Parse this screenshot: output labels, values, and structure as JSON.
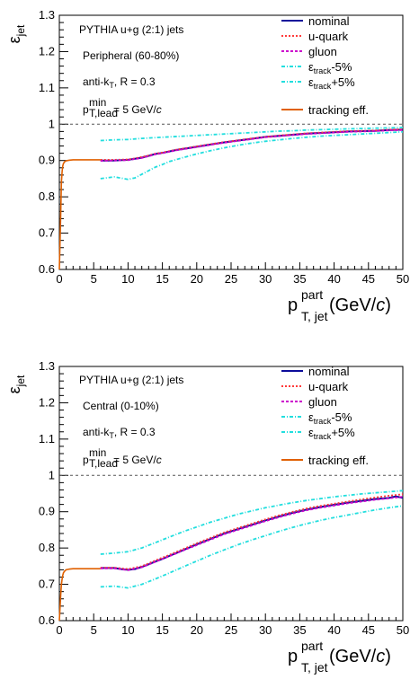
{
  "chart_data": [
    {
      "type": "line",
      "ylim": [
        0.6,
        1.3
      ],
      "xlim": [
        0,
        50
      ],
      "x_ticks": [
        "0",
        "5",
        "10",
        "15",
        "20",
        "25",
        "30",
        "35",
        "40",
        "45",
        "50"
      ],
      "y_ticks": [
        "0.6",
        "0.7",
        "0.8",
        "0.9",
        "1",
        "1.1",
        "1.2",
        "1.3"
      ],
      "ylabel": {
        "main": "ε",
        "sub": "jet"
      },
      "xlabel": {
        "main": "p",
        "sup": "part",
        "sub": "T, jet",
        "unit_pre": " (GeV/",
        "unit_c": "c",
        "unit_post": ")"
      },
      "annotations": {
        "generator": "PYTHIA u+g (2:1) jets",
        "centrality": "Peripheral (60-80%)",
        "algo_pre": "anti-k",
        "algo_sub": "T",
        "algo_post": ", R = 0.3",
        "pt_main": "p",
        "pt_sup": "min",
        "pt_sub": "T,lead",
        "pt_post": " = 5 GeV/",
        "pt_c": "c"
      },
      "legend": [
        {
          "key": "nominal",
          "label": "nominal"
        },
        {
          "key": "uquark",
          "label": "u-quark"
        },
        {
          "key": "gluon",
          "label": "gluon"
        },
        {
          "key": "minus",
          "label_main": "ε",
          "label_sub": "track",
          "label_post": "-5%"
        },
        {
          "key": "plus",
          "label_main": "ε",
          "label_sub": "track",
          "label_post": "+5%"
        },
        {
          "key": "tracking",
          "label": "tracking eff."
        }
      ],
      "reference_line": 1.0,
      "series": [
        {
          "key": "nominal",
          "x": [
            6,
            8,
            10,
            11,
            12,
            13,
            14,
            15,
            16,
            17,
            18,
            19,
            20,
            22,
            24,
            26,
            28,
            30,
            32,
            34,
            36,
            38,
            40,
            42,
            44,
            46,
            48,
            50
          ],
          "y": [
            0.9,
            0.9,
            0.902,
            0.905,
            0.908,
            0.913,
            0.918,
            0.921,
            0.925,
            0.929,
            0.932,
            0.935,
            0.938,
            0.944,
            0.95,
            0.955,
            0.96,
            0.965,
            0.968,
            0.971,
            0.974,
            0.976,
            0.978,
            0.98,
            0.981,
            0.982,
            0.984,
            0.985
          ]
        },
        {
          "key": "uquark",
          "x": [
            6,
            8,
            10,
            11,
            12,
            13,
            14,
            15,
            16,
            17,
            18,
            19,
            20,
            22,
            24,
            26,
            28,
            30,
            32,
            34,
            36,
            38,
            40,
            42,
            44,
            46,
            48,
            50
          ],
          "y": [
            0.902,
            0.902,
            0.903,
            0.906,
            0.91,
            0.914,
            0.919,
            0.922,
            0.926,
            0.93,
            0.933,
            0.936,
            0.939,
            0.945,
            0.951,
            0.956,
            0.961,
            0.965,
            0.969,
            0.972,
            0.975,
            0.977,
            0.979,
            0.981,
            0.982,
            0.983,
            0.985,
            0.986
          ]
        },
        {
          "key": "gluon",
          "x": [
            6,
            8,
            10,
            11,
            12,
            13,
            14,
            15,
            16,
            17,
            18,
            19,
            20,
            22,
            24,
            26,
            28,
            30,
            32,
            34,
            36,
            38,
            40,
            42,
            44,
            46,
            48,
            50
          ],
          "y": [
            0.899,
            0.9,
            0.901,
            0.904,
            0.907,
            0.912,
            0.917,
            0.92,
            0.924,
            0.928,
            0.931,
            0.934,
            0.937,
            0.943,
            0.949,
            0.954,
            0.959,
            0.964,
            0.967,
            0.97,
            0.973,
            0.975,
            0.977,
            0.979,
            0.98,
            0.981,
            0.983,
            0.984
          ]
        },
        {
          "key": "minus",
          "x": [
            6,
            8,
            10,
            11,
            12,
            13,
            14,
            15,
            16,
            18,
            20,
            22,
            24,
            26,
            28,
            30,
            32,
            34,
            36,
            38,
            40,
            42,
            44,
            46,
            48,
            50
          ],
          "y": [
            0.85,
            0.855,
            0.848,
            0.852,
            0.862,
            0.872,
            0.882,
            0.889,
            0.897,
            0.908,
            0.918,
            0.927,
            0.935,
            0.942,
            0.948,
            0.953,
            0.957,
            0.961,
            0.964,
            0.967,
            0.969,
            0.971,
            0.973,
            0.975,
            0.977,
            0.979
          ]
        },
        {
          "key": "plus",
          "x": [
            6,
            8,
            10,
            12,
            14,
            16,
            18,
            20,
            22,
            24,
            26,
            28,
            30,
            32,
            34,
            36,
            38,
            40,
            42,
            44,
            46,
            48,
            50
          ],
          "y": [
            0.955,
            0.957,
            0.958,
            0.961,
            0.963,
            0.965,
            0.967,
            0.969,
            0.971,
            0.973,
            0.975,
            0.977,
            0.979,
            0.981,
            0.982,
            0.984,
            0.985,
            0.986,
            0.987,
            0.988,
            0.989,
            0.99,
            0.991
          ]
        },
        {
          "key": "tracking",
          "x": [
            0,
            0.2,
            0.3,
            0.4,
            0.5,
            0.6,
            0.8,
            1.0,
            1.2,
            1.5,
            2,
            3,
            4,
            5,
            6
          ],
          "y": [
            0.6,
            0.75,
            0.84,
            0.87,
            0.885,
            0.892,
            0.897,
            0.899,
            0.9,
            0.901,
            0.902,
            0.902,
            0.902,
            0.902,
            0.902
          ]
        }
      ]
    },
    {
      "type": "line",
      "ylim": [
        0.6,
        1.3
      ],
      "xlim": [
        0,
        50
      ],
      "x_ticks": [
        "0",
        "5",
        "10",
        "15",
        "20",
        "25",
        "30",
        "35",
        "40",
        "45",
        "50"
      ],
      "y_ticks": [
        "0.6",
        "0.7",
        "0.8",
        "0.9",
        "1",
        "1.1",
        "1.2",
        "1.3"
      ],
      "ylabel": {
        "main": "ε",
        "sub": "jet"
      },
      "xlabel": {
        "main": "p",
        "sup": "part",
        "sub": "T, jet",
        "unit_pre": " (GeV/",
        "unit_c": "c",
        "unit_post": ")"
      },
      "annotations": {
        "generator": "PYTHIA u+g (2:1) jets",
        "centrality": "Central (0-10%)",
        "algo_pre": "anti-k",
        "algo_sub": "T",
        "algo_post": ", R = 0.3",
        "pt_main": "p",
        "pt_sup": "min",
        "pt_sub": "T,lead",
        "pt_post": " = 5 GeV/",
        "pt_c": "c"
      },
      "legend": [
        {
          "key": "nominal",
          "label": "nominal"
        },
        {
          "key": "uquark",
          "label": "u-quark"
        },
        {
          "key": "gluon",
          "label": "gluon"
        },
        {
          "key": "minus",
          "label_main": "ε",
          "label_sub": "track",
          "label_post": "-5%"
        },
        {
          "key": "plus",
          "label_main": "ε",
          "label_sub": "track",
          "label_post": "+5%"
        },
        {
          "key": "tracking",
          "label": "tracking eff."
        }
      ],
      "reference_line": 1.0,
      "series": [
        {
          "key": "nominal",
          "x": [
            6,
            8,
            9,
            10,
            11,
            12,
            13,
            14,
            15,
            16,
            17,
            18,
            19,
            20,
            22,
            24,
            26,
            28,
            30,
            32,
            34,
            36,
            38,
            40,
            42,
            44,
            46,
            48,
            49,
            50
          ],
          "y": [
            0.745,
            0.745,
            0.742,
            0.74,
            0.742,
            0.748,
            0.755,
            0.763,
            0.77,
            0.778,
            0.786,
            0.794,
            0.802,
            0.81,
            0.825,
            0.84,
            0.852,
            0.864,
            0.876,
            0.887,
            0.897,
            0.906,
            0.913,
            0.919,
            0.925,
            0.93,
            0.935,
            0.938,
            0.942,
            0.938
          ]
        },
        {
          "key": "uquark",
          "x": [
            6,
            8,
            10,
            12,
            14,
            16,
            18,
            20,
            22,
            24,
            26,
            28,
            30,
            32,
            34,
            36,
            38,
            40,
            42,
            44,
            46,
            48,
            50
          ],
          "y": [
            0.746,
            0.746,
            0.742,
            0.75,
            0.766,
            0.781,
            0.797,
            0.813,
            0.828,
            0.843,
            0.855,
            0.867,
            0.879,
            0.89,
            0.9,
            0.909,
            0.916,
            0.922,
            0.928,
            0.934,
            0.939,
            0.944,
            0.948
          ]
        },
        {
          "key": "gluon",
          "x": [
            6,
            8,
            10,
            12,
            14,
            16,
            18,
            20,
            22,
            24,
            26,
            28,
            30,
            32,
            34,
            36,
            38,
            40,
            42,
            44,
            46,
            48,
            50
          ],
          "y": [
            0.744,
            0.744,
            0.739,
            0.747,
            0.762,
            0.777,
            0.793,
            0.808,
            0.823,
            0.838,
            0.85,
            0.862,
            0.874,
            0.885,
            0.895,
            0.904,
            0.911,
            0.917,
            0.923,
            0.928,
            0.933,
            0.937,
            0.941
          ]
        },
        {
          "key": "minus",
          "x": [
            6,
            8,
            10,
            12,
            14,
            16,
            18,
            20,
            22,
            24,
            26,
            28,
            30,
            32,
            34,
            36,
            38,
            40,
            42,
            44,
            46,
            48,
            50
          ],
          "y": [
            0.693,
            0.695,
            0.69,
            0.7,
            0.715,
            0.731,
            0.748,
            0.764,
            0.78,
            0.795,
            0.809,
            0.822,
            0.834,
            0.846,
            0.857,
            0.867,
            0.876,
            0.884,
            0.891,
            0.898,
            0.905,
            0.911,
            0.916
          ]
        },
        {
          "key": "plus",
          "x": [
            6,
            8,
            10,
            12,
            14,
            16,
            18,
            20,
            22,
            24,
            26,
            28,
            30,
            32,
            34,
            36,
            38,
            40,
            42,
            44,
            46,
            48,
            50
          ],
          "y": [
            0.783,
            0.786,
            0.79,
            0.8,
            0.815,
            0.83,
            0.845,
            0.858,
            0.871,
            0.882,
            0.893,
            0.902,
            0.911,
            0.918,
            0.925,
            0.931,
            0.936,
            0.941,
            0.945,
            0.949,
            0.952,
            0.955,
            0.958
          ]
        },
        {
          "key": "tracking",
          "x": [
            0,
            0.2,
            0.3,
            0.4,
            0.5,
            0.6,
            0.8,
            1.0,
            1.2,
            1.5,
            2,
            3,
            4,
            5,
            6
          ],
          "y": [
            0.6,
            0.67,
            0.7,
            0.715,
            0.725,
            0.732,
            0.737,
            0.74,
            0.741,
            0.742,
            0.743,
            0.743,
            0.743,
            0.743,
            0.743
          ]
        }
      ]
    }
  ],
  "styles": {
    "nominal": {
      "color": "#0c0c9a",
      "dash": ""
    },
    "uquark": {
      "color": "#ff3b3b",
      "dash": "2,2"
    },
    "gluon": {
      "color": "#cc00cc",
      "dash": "3,2"
    },
    "minus": {
      "color": "#22dede",
      "dash": "4,2,1,2"
    },
    "plus": {
      "color": "#22dede",
      "dash": "4,2,1,2"
    },
    "tracking": {
      "color": "#e06000",
      "dash": ""
    }
  }
}
